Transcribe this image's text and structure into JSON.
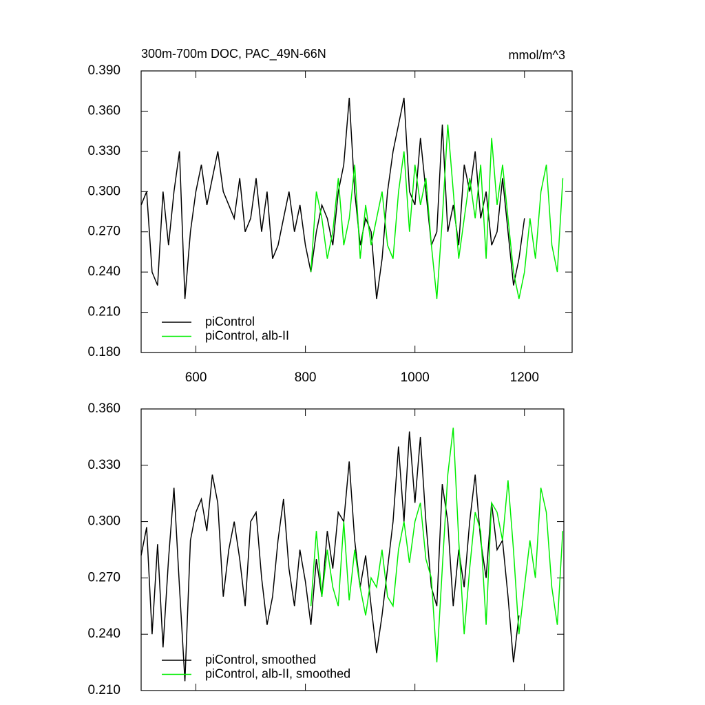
{
  "chart_data": [
    {
      "type": "line",
      "title": "300m-700m DOC, PAC_49N-66N",
      "units_label": "mmol/m^3",
      "xlim": [
        500,
        1287
      ],
      "xticks": [
        600,
        800,
        1000,
        1200
      ],
      "ylim": [
        0.18,
        0.39
      ],
      "yticks": [
        {
          "value": 0.18,
          "label": "0.180"
        },
        {
          "value": 0.21,
          "label": "0.210"
        },
        {
          "value": 0.24,
          "label": "0.240"
        },
        {
          "value": 0.27,
          "label": "0.270"
        },
        {
          "value": 0.3,
          "label": "0.300"
        },
        {
          "value": 0.33,
          "label": "0.330"
        },
        {
          "value": 0.36,
          "label": "0.360"
        },
        {
          "value": 0.39,
          "label": "0.390"
        }
      ],
      "legend": "lower left",
      "series": [
        {
          "name": "piControl",
          "color": "#000000",
          "x": [
            500,
            510,
            520,
            530,
            540,
            550,
            560,
            570,
            580,
            590,
            600,
            610,
            620,
            630,
            640,
            650,
            660,
            670,
            680,
            690,
            700,
            710,
            720,
            730,
            740,
            750,
            760,
            770,
            780,
            790,
            800,
            810,
            820,
            830,
            840,
            850,
            860,
            870,
            880,
            890,
            900,
            910,
            920,
            930,
            940,
            950,
            960,
            970,
            980,
            990,
            1000,
            1010,
            1020,
            1030,
            1040,
            1050,
            1060,
            1070,
            1080,
            1090,
            1100,
            1110,
            1120,
            1130,
            1140,
            1150,
            1160,
            1170,
            1180,
            1190,
            1200
          ],
          "values": [
            0.29,
            0.3,
            0.24,
            0.23,
            0.3,
            0.26,
            0.3,
            0.33,
            0.22,
            0.27,
            0.3,
            0.32,
            0.29,
            0.31,
            0.33,
            0.3,
            0.29,
            0.28,
            0.31,
            0.27,
            0.28,
            0.31,
            0.27,
            0.3,
            0.25,
            0.26,
            0.28,
            0.3,
            0.27,
            0.29,
            0.26,
            0.24,
            0.27,
            0.29,
            0.28,
            0.26,
            0.3,
            0.32,
            0.37,
            0.3,
            0.26,
            0.28,
            0.27,
            0.22,
            0.25,
            0.3,
            0.33,
            0.35,
            0.37,
            0.3,
            0.29,
            0.34,
            0.3,
            0.26,
            0.27,
            0.35,
            0.27,
            0.29,
            0.26,
            0.32,
            0.3,
            0.33,
            0.28,
            0.3,
            0.26,
            0.27,
            0.31,
            0.27,
            0.23,
            0.25,
            0.28
          ]
        },
        {
          "name": "piControl, alb-II",
          "color": "#00ee00",
          "x": [
            810,
            820,
            830,
            840,
            850,
            860,
            870,
            880,
            890,
            900,
            910,
            920,
            930,
            940,
            950,
            960,
            970,
            980,
            990,
            1000,
            1010,
            1020,
            1030,
            1040,
            1050,
            1060,
            1070,
            1080,
            1090,
            1100,
            1110,
            1120,
            1130,
            1140,
            1150,
            1160,
            1170,
            1180,
            1190,
            1200,
            1210,
            1220,
            1230,
            1240,
            1250,
            1260,
            1270
          ],
          "values": [
            0.24,
            0.3,
            0.28,
            0.25,
            0.27,
            0.31,
            0.26,
            0.28,
            0.32,
            0.25,
            0.29,
            0.26,
            0.28,
            0.3,
            0.26,
            0.25,
            0.3,
            0.33,
            0.27,
            0.32,
            0.29,
            0.31,
            0.26,
            0.22,
            0.28,
            0.35,
            0.3,
            0.25,
            0.28,
            0.31,
            0.28,
            0.32,
            0.25,
            0.34,
            0.29,
            0.32,
            0.28,
            0.24,
            0.22,
            0.24,
            0.28,
            0.25,
            0.3,
            0.32,
            0.26,
            0.24,
            0.31
          ]
        }
      ]
    },
    {
      "type": "line",
      "xlim": [
        500,
        1272
      ],
      "xticks": [
        600,
        800,
        1000,
        1200
      ],
      "ylim": [
        0.21,
        0.36
      ],
      "yticks": [
        {
          "value": 0.21,
          "label": "0.210"
        },
        {
          "value": 0.24,
          "label": "0.240"
        },
        {
          "value": 0.27,
          "label": "0.270"
        },
        {
          "value": 0.3,
          "label": "0.300"
        },
        {
          "value": 0.33,
          "label": "0.330"
        },
        {
          "value": 0.36,
          "label": "0.360"
        }
      ],
      "legend": "lower left",
      "series": [
        {
          "name": "piControl, smoothed",
          "color": "#000000",
          "x": [
            500,
            510,
            520,
            530,
            540,
            550,
            560,
            570,
            580,
            590,
            600,
            610,
            620,
            630,
            640,
            650,
            660,
            670,
            680,
            690,
            700,
            710,
            720,
            730,
            740,
            750,
            760,
            770,
            780,
            790,
            800,
            810,
            820,
            830,
            840,
            850,
            860,
            870,
            880,
            890,
            900,
            910,
            920,
            930,
            940,
            950,
            960,
            970,
            980,
            990,
            1000,
            1010,
            1020,
            1030,
            1040,
            1050,
            1060,
            1070,
            1080,
            1090,
            1100,
            1110,
            1120,
            1130,
            1140,
            1150,
            1160,
            1170,
            1180,
            1190
          ],
          "values": [
            0.282,
            0.297,
            0.24,
            0.288,
            0.233,
            0.28,
            0.318,
            0.265,
            0.215,
            0.29,
            0.305,
            0.312,
            0.295,
            0.325,
            0.31,
            0.26,
            0.285,
            0.3,
            0.28,
            0.255,
            0.3,
            0.305,
            0.27,
            0.245,
            0.26,
            0.29,
            0.312,
            0.275,
            0.255,
            0.285,
            0.268,
            0.245,
            0.28,
            0.26,
            0.295,
            0.275,
            0.305,
            0.3,
            0.332,
            0.29,
            0.265,
            0.282,
            0.255,
            0.23,
            0.25,
            0.275,
            0.3,
            0.34,
            0.3,
            0.348,
            0.31,
            0.345,
            0.3,
            0.265,
            0.255,
            0.32,
            0.3,
            0.255,
            0.285,
            0.265,
            0.3,
            0.325,
            0.29,
            0.27,
            0.31,
            0.285,
            0.29,
            0.26,
            0.225,
            0.25
          ]
        },
        {
          "name": "piControl, alb-II, smoothed",
          "color": "#00ee00",
          "x": [
            810,
            820,
            830,
            840,
            850,
            860,
            870,
            880,
            890,
            900,
            910,
            920,
            930,
            940,
            950,
            960,
            970,
            980,
            990,
            1000,
            1010,
            1020,
            1030,
            1040,
            1050,
            1060,
            1070,
            1080,
            1090,
            1100,
            1110,
            1120,
            1130,
            1140,
            1150,
            1160,
            1170,
            1180,
            1190,
            1200,
            1210,
            1220,
            1230,
            1240,
            1250,
            1260,
            1270
          ],
          "values": [
            0.255,
            0.295,
            0.26,
            0.285,
            0.265,
            0.255,
            0.3,
            0.258,
            0.285,
            0.265,
            0.25,
            0.27,
            0.265,
            0.285,
            0.26,
            0.255,
            0.285,
            0.3,
            0.278,
            0.3,
            0.31,
            0.28,
            0.27,
            0.225,
            0.275,
            0.325,
            0.35,
            0.29,
            0.24,
            0.275,
            0.305,
            0.295,
            0.245,
            0.31,
            0.305,
            0.29,
            0.322,
            0.285,
            0.24,
            0.265,
            0.29,
            0.27,
            0.318,
            0.305,
            0.265,
            0.245,
            0.295
          ]
        }
      ]
    }
  ]
}
